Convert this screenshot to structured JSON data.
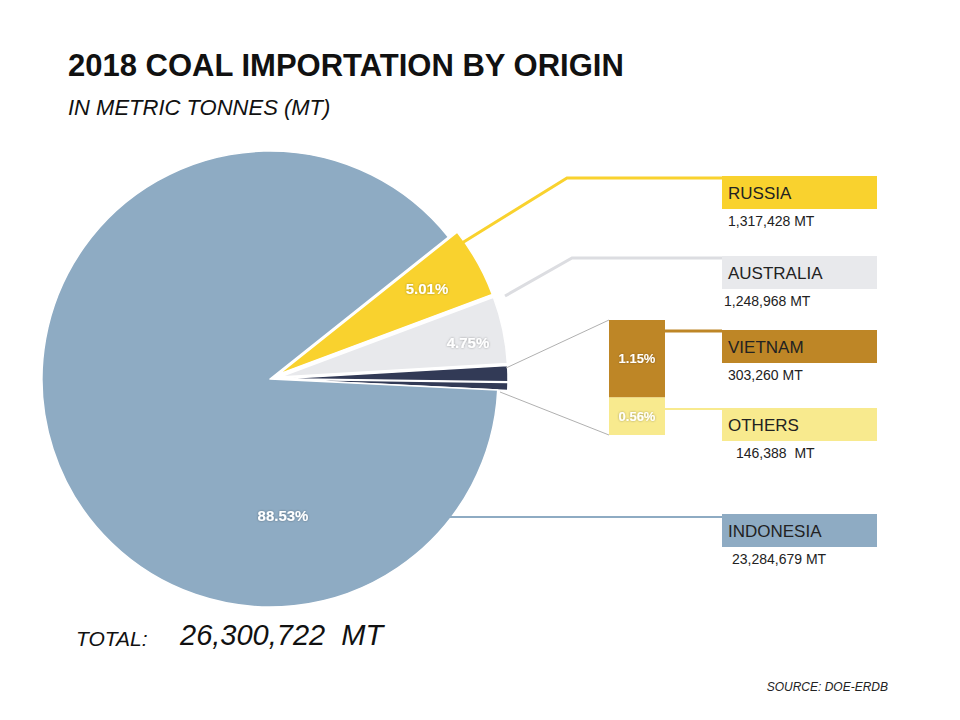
{
  "chart_data": {
    "type": "pie",
    "title": "2018 COAL IMPORTATION BY ORIGIN",
    "subtitle": "IN METRIC TONNES (MT)",
    "categories": [
      "RUSSIA",
      "AUSTRALIA",
      "VIETNAM",
      "OTHERS",
      "INDONESIA"
    ],
    "values": [
      5.01,
      4.75,
      1.15,
      0.56,
      88.53
    ],
    "value_labels": [
      "5.01%",
      "4.75%",
      "1.15%",
      "0.56%",
      "88.53%"
    ],
    "data_labels": true,
    "colors": [
      "#f9d22e",
      "#e8e9ec",
      "#be8626",
      "#f8ea8e",
      "#8eabc3"
    ],
    "amount_labels": [
      "1,317,428 MT",
      "1,248,968 MT",
      "303,260 MT",
      "146,388  MT",
      "23,284,679 MT"
    ],
    "bar_categories": [
      "VIETNAM",
      "OTHERS"
    ],
    "total_label": "TOTAL:",
    "total_value_label": "26,300,722  MT",
    "source": "SOURCE: DOE-ERDB"
  }
}
